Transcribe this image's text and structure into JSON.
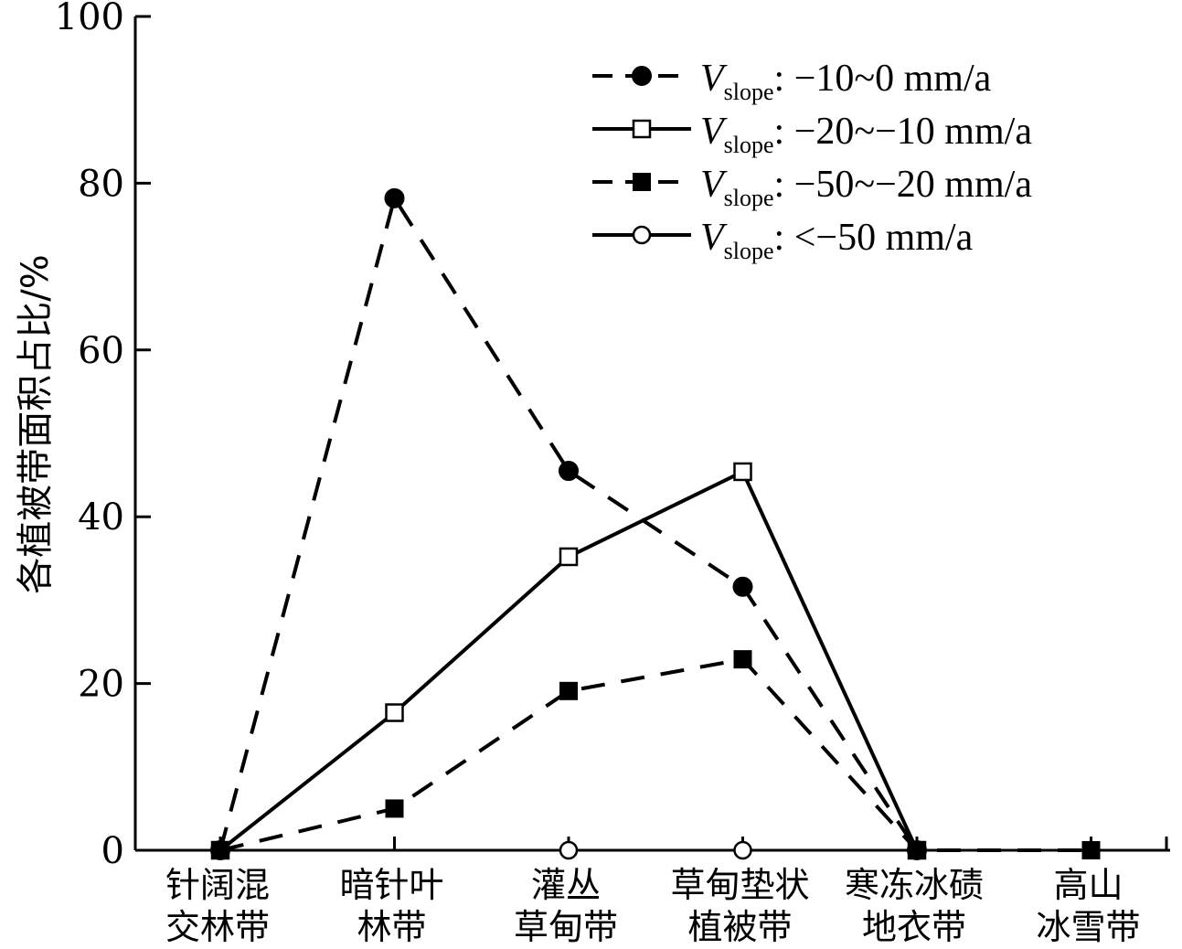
{
  "chart_data": {
    "type": "line",
    "ylabel": "各植被带面积占比/%",
    "xlabel": "",
    "ylim": [
      0,
      100
    ],
    "yticks": [
      0,
      20,
      40,
      60,
      80,
      100
    ],
    "categories": [
      [
        "针阔混",
        "交林带"
      ],
      [
        "暗针叶",
        "林带"
      ],
      [
        "灌丛",
        "草甸带"
      ],
      [
        "草甸垫状",
        "植被带"
      ],
      [
        "寒冻冰碛",
        "地衣带"
      ],
      [
        "高山",
        "冰雪带"
      ]
    ],
    "series": [
      {
        "name": "-10~0 mm/a",
        "legend_var": "V",
        "legend_sub": "slope",
        "legend_range": ": −10~0 mm/a",
        "style": "dashed",
        "marker": "filled-circle",
        "values": [
          0,
          78.2,
          45.5,
          31.6,
          0,
          null
        ]
      },
      {
        "name": "-20~-10 mm/a",
        "legend_var": "V",
        "legend_sub": "slope",
        "legend_range": ": −20~−10 mm/a",
        "style": "solid",
        "marker": "open-square",
        "values": [
          0,
          16.5,
          35.2,
          45.4,
          0,
          null
        ]
      },
      {
        "name": "-50~-20 mm/a",
        "legend_var": "V",
        "legend_sub": "slope",
        "legend_range": ": −50~−20 mm/a",
        "style": "dashed",
        "marker": "filled-square",
        "values": [
          0,
          5.0,
          19.1,
          22.9,
          0,
          0
        ]
      },
      {
        "name": "<-50 mm/a",
        "legend_var": "V",
        "legend_sub": "slope",
        "legend_range": ": <−50 mm/a",
        "style": "solid",
        "marker": "open-circle",
        "values": [
          0,
          null,
          0,
          0,
          0,
          null
        ]
      }
    ]
  }
}
